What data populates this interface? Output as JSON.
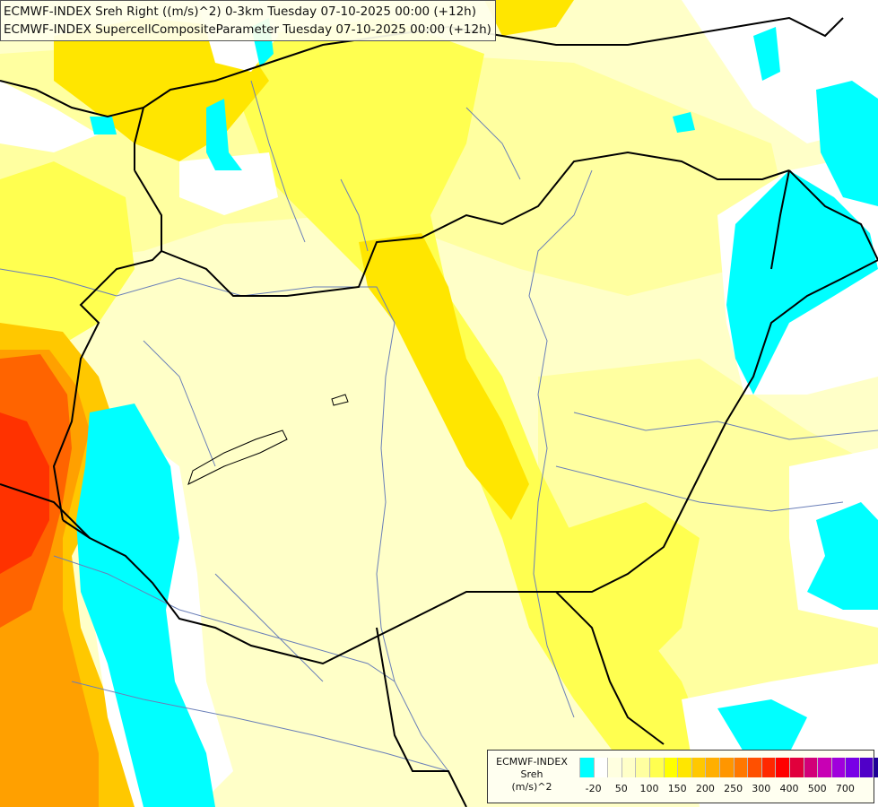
{
  "title": {
    "line1": "ECMWF-INDEX Sreh Right ((m/s)^2) 0-3km Tuesday 07-10-2025 00:00 (+12h)",
    "line2": "ECMWF-INDEX SupercellCompositeParameter Tuesday 07-10-2025 00:00 (+12h)"
  },
  "colors": {
    "land_base": "#ffffc8",
    "pale_yellow": "#ffffa0",
    "yellow": "#ffff50",
    "gold": "#ffe600",
    "orange_light": "#ffc800",
    "orange": "#ffa000",
    "orange_dark": "#ff6400",
    "red": "#ff3200",
    "cyan": "#00ffff",
    "white": "#ffffff",
    "border_line": "#000000",
    "river_line": "#6a7fb8"
  },
  "legend": {
    "caption_line1": "ECMWF-INDEX",
    "caption_line2": "Sreh",
    "caption_line3": "(m/s)^2",
    "swatch_colors": [
      "#00ffff",
      "#ffffff",
      "#ffffe0",
      "#ffffc8",
      "#ffffa0",
      "#ffff50",
      "#ffff00",
      "#ffe600",
      "#ffc800",
      "#ffaf00",
      "#ff9600",
      "#ff7800",
      "#ff5000",
      "#ff2800",
      "#ff0000",
      "#e1003c",
      "#d20078",
      "#c800b4",
      "#a000dc",
      "#7800e6",
      "#5000c8",
      "#1e0096"
    ],
    "labels": [
      "-20",
      "50",
      "100",
      "150",
      "200",
      "250",
      "300",
      "400",
      "500",
      "700"
    ]
  }
}
